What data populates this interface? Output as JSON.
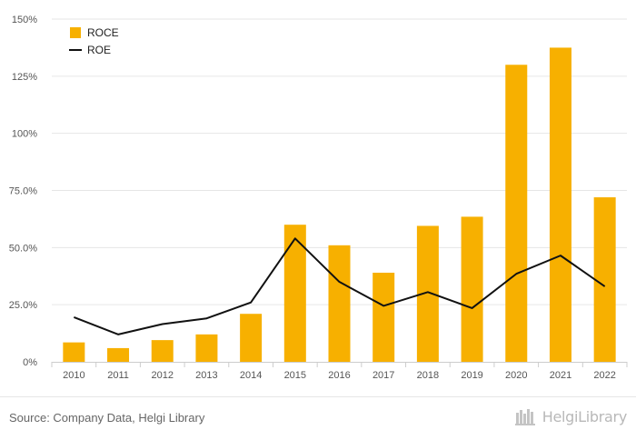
{
  "chart_data": {
    "type": "bar",
    "categories": [
      "2010",
      "2011",
      "2012",
      "2013",
      "2014",
      "2015",
      "2016",
      "2017",
      "2018",
      "2019",
      "2020",
      "2021",
      "2022"
    ],
    "series": [
      {
        "name": "ROCE",
        "type": "bar",
        "color": "#F7B000",
        "values": [
          8.5,
          6.0,
          9.5,
          12.0,
          21.0,
          60.0,
          51.0,
          39.0,
          59.5,
          63.5,
          130.0,
          137.5,
          72.0
        ]
      },
      {
        "name": "ROE",
        "type": "line",
        "color": "#111111",
        "values": [
          19.5,
          12.0,
          16.5,
          19.0,
          26.0,
          54.0,
          35.0,
          24.5,
          30.5,
          23.5,
          38.5,
          46.5,
          33.0
        ]
      }
    ],
    "ylim": [
      0,
      150
    ],
    "yticks": [
      0,
      25,
      50,
      75,
      100,
      125,
      150
    ],
    "ytick_labels": [
      "0%",
      "25.0%",
      "50.0%",
      "75.0%",
      "100%",
      "125%",
      "150%"
    ],
    "grid": true,
    "legend_position": "top-left"
  },
  "footer": {
    "source": "Source: Company Data, Helgi Library",
    "brand": "HelgiLibrary"
  },
  "brand_icon": "library-books-icon"
}
